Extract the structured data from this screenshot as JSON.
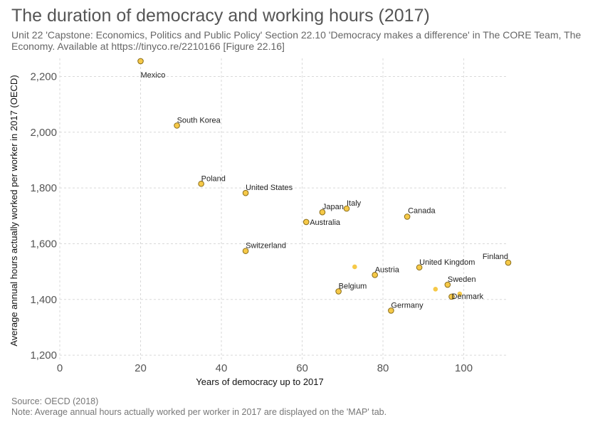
{
  "title": "The duration of democracy and working hours (2017)",
  "subtitle": "Unit 22 'Capstone: Economics, Politics and Public Policy' Section 22.10 'Democracy makes a difference' in The CORE Team, The Economy. Available at https://tinyco.re/2210166 [Figure 22.16]",
  "source": "Source: OECD (2018)",
  "note": "Note: Average annual hours actually worked per worker in 2017 are displayed on the 'MAP' tab.",
  "colors": {
    "point_fill": "#f6c948",
    "point_stroke": "#8a6d1a",
    "grid": "#d9d9d9",
    "text": "#222222",
    "tick": "#555555"
  },
  "chart_data": {
    "type": "scatter",
    "xlabel": "Years of democracy up to 2017",
    "ylabel": "Average annual hours actually worked per worker in 2017 (OECD)",
    "xlim": [
      0,
      111
    ],
    "ylim": [
      1185,
      2265
    ],
    "x_ticks": [
      0,
      20,
      40,
      60,
      80,
      100
    ],
    "y_ticks": [
      1200,
      1400,
      1600,
      1800,
      2000,
      2200
    ],
    "y_tick_labels": [
      "1,200",
      "1,400",
      "1,600",
      "1,800",
      "2,000",
      "2,200"
    ],
    "grid": true,
    "points": [
      {
        "label": "Mexico",
        "x": 20,
        "y": 2255
      },
      {
        "label": "South Korea",
        "x": 29,
        "y": 2024
      },
      {
        "label": "Poland",
        "x": 35,
        "y": 1815
      },
      {
        "label": "United States",
        "x": 46,
        "y": 1782
      },
      {
        "label": "Japan",
        "x": 65,
        "y": 1713
      },
      {
        "label": "Italy",
        "x": 71,
        "y": 1726
      },
      {
        "label": "Australia",
        "x": 61,
        "y": 1678
      },
      {
        "label": "Canada",
        "x": 86,
        "y": 1697
      },
      {
        "label": "Switzerland",
        "x": 46,
        "y": 1574
      },
      {
        "label": "United Kingdom",
        "x": 89,
        "y": 1515
      },
      {
        "label": "Finland",
        "x": 111,
        "y": 1532
      },
      {
        "label": "Austria",
        "x": 78,
        "y": 1488
      },
      {
        "label": "Sweden",
        "x": 96,
        "y": 1453
      },
      {
        "label": "Denmark",
        "x": 97,
        "y": 1410
      },
      {
        "label": "Belgium",
        "x": 69,
        "y": 1429
      },
      {
        "label": "Germany",
        "x": 82,
        "y": 1360
      },
      {
        "label": "",
        "x": 73,
        "y": 1517
      },
      {
        "label": "",
        "x": 93,
        "y": 1437
      },
      {
        "label": "",
        "x": 99,
        "y": 1420
      }
    ]
  }
}
